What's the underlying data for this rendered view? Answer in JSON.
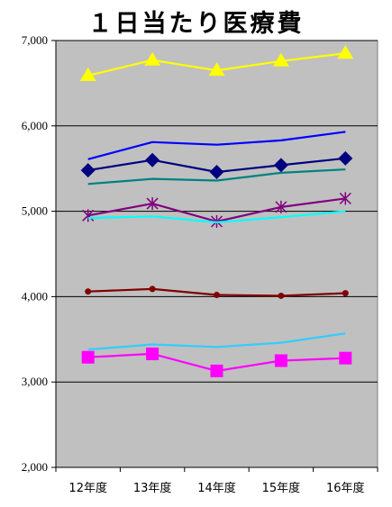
{
  "title": "１日当たり医療費",
  "chart_data": {
    "type": "line",
    "title": "１日当たり医療費",
    "categories": [
      "12年度",
      "13年度",
      "14年度",
      "15年度",
      "16年度"
    ],
    "ylim": [
      2000,
      7000
    ],
    "yticks": [
      2000,
      3000,
      4000,
      5000,
      6000,
      7000
    ],
    "ytick_labels": [
      "2,000",
      "3,000",
      "4,000",
      "5,000",
      "6,000",
      "7,000"
    ],
    "grid": true,
    "legend": "none",
    "background": "#c0c0c0",
    "series": [
      {
        "color": "#ffff00",
        "marker": "triangle",
        "values": [
          6590,
          6770,
          6650,
          6760,
          6850
        ]
      },
      {
        "color": "#0000ff",
        "marker": "none",
        "values": [
          5610,
          5810,
          5780,
          5830,
          5930
        ]
      },
      {
        "color": "#000080",
        "marker": "diamond",
        "values": [
          5480,
          5600,
          5460,
          5540,
          5620
        ]
      },
      {
        "color": "#008080",
        "marker": "none",
        "values": [
          5320,
          5380,
          5360,
          5450,
          5490
        ]
      },
      {
        "color": "#800080",
        "marker": "star",
        "values": [
          4950,
          5090,
          4880,
          5050,
          5150
        ]
      },
      {
        "color": "#00ffff",
        "marker": "none",
        "values": [
          4920,
          4940,
          4870,
          4930,
          5000
        ]
      },
      {
        "color": "#800000",
        "marker": "circle",
        "values": [
          4060,
          4090,
          4020,
          4010,
          4040
        ]
      },
      {
        "color": "#33ccff",
        "marker": "none",
        "values": [
          3380,
          3440,
          3410,
          3460,
          3570
        ]
      },
      {
        "color": "#ff00ff",
        "marker": "square",
        "values": [
          3290,
          3330,
          3130,
          3250,
          3280
        ]
      }
    ]
  }
}
